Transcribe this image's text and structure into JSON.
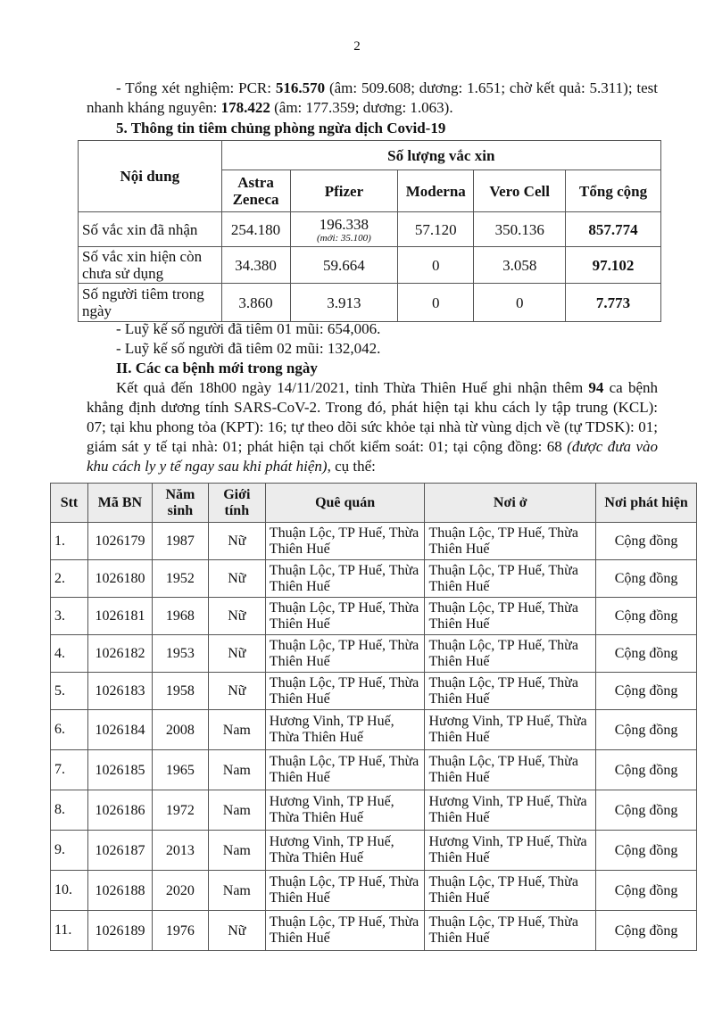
{
  "page_number": "2",
  "testing": {
    "prefix": "- Tổng xét nghiệm: PCR: ",
    "pcr_total": "516.570",
    "pcr_detail": " (âm: 509.608; dương: 1.651; chờ kết quả: 5.311); test nhanh kháng nguyên: ",
    "rapid_total": "178.422",
    "rapid_detail": " (âm: 177.359; dương: 1.063)."
  },
  "vaccine_section_title": "5. Thông tin tiêm chủng phòng ngừa dịch Covid-19",
  "vaccine_table": {
    "content_header": "Nội dung",
    "group_header": "Số lượng vắc xin",
    "columns": [
      "Astra Zeneca",
      "Pfizer",
      "Moderna",
      "Vero Cell",
      "Tổng cộng"
    ],
    "rows": [
      {
        "label": "Số vắc xin đã nhận",
        "values": [
          "254.180",
          "196.338",
          "57.120",
          "350.136",
          "857.774"
        ],
        "note": "(mới: 35.100)"
      },
      {
        "label": "Số vắc xin hiện còn chưa sử dụng",
        "values": [
          "34.380",
          "59.664",
          "0",
          "3.058",
          "97.102"
        ]
      },
      {
        "label": "Số người tiêm trong ngày",
        "values": [
          "3.860",
          "3.913",
          "0",
          "0",
          "7.773"
        ]
      }
    ]
  },
  "cumulative": [
    "- Luỹ kế số người đã tiêm 01 mũi: 654,006.",
    "- Luỹ kế số người đã tiêm 02 mũi: 132,042."
  ],
  "section2_title": "II. Các ca bệnh mới trong ngày",
  "summary": {
    "a": "Kết quả đến 18h00 ngày 14/11/2021, tỉnh Thừa Thiên Huế ghi nhận thêm ",
    "count": "94",
    "b": " ca bệnh khẳng định dương tính SARS-CoV-2. Trong đó, phát hiện tại khu cách ly tập trung (KCL): 07; tại khu phong tỏa (KPT): 16; tự theo dõi sức khỏe tại nhà từ vùng dịch về (tự TDSK): 01; giám sát y tế tại nhà: 01; phát hiện tại chốt kiểm soát: 01; tại cộng đồng: 68 ",
    "italic": "(được đưa vào khu cách ly y tế ngay sau khi phát hiện)",
    "c": ", cụ thể:"
  },
  "case_table": {
    "headers": [
      "Stt",
      "Mã BN",
      "Năm sinh",
      "Giới tính",
      "Quê quán",
      "Nơi ở",
      "Nơi phát hiện"
    ],
    "rows": [
      [
        "1.",
        "1026179",
        "1987",
        "Nữ",
        "Thuận Lộc, TP Huế, Thừa Thiên Huế",
        "Thuận Lộc, TP Huế, Thừa Thiên Huế",
        "Cộng đồng"
      ],
      [
        "2.",
        "1026180",
        "1952",
        "Nữ",
        "Thuận Lộc, TP Huế, Thừa Thiên Huế",
        "Thuận Lộc, TP Huế, Thừa Thiên Huế",
        "Cộng đồng"
      ],
      [
        "3.",
        "1026181",
        "1968",
        "Nữ",
        "Thuận Lộc, TP Huế, Thừa Thiên Huế",
        "Thuận Lộc, TP Huế, Thừa Thiên Huế",
        "Cộng đồng"
      ],
      [
        "4.",
        "1026182",
        "1953",
        "Nữ",
        "Thuận Lộc, TP Huế, Thừa Thiên Huế",
        "Thuận Lộc, TP Huế, Thừa Thiên Huế",
        "Cộng đồng"
      ],
      [
        "5.",
        "1026183",
        "1958",
        "Nữ",
        "Thuận Lộc, TP Huế, Thừa Thiên Huế",
        "Thuận Lộc, TP Huế, Thừa Thiên Huế",
        "Cộng đồng"
      ],
      [
        "6.",
        "1026184",
        "2008",
        "Nam",
        "Hương Vinh, TP Huế, Thừa Thiên Huế",
        "Hương Vinh, TP Huế, Thừa Thiên Huế",
        "Cộng đồng"
      ],
      [
        "7.",
        "1026185",
        "1965",
        "Nam",
        "Thuận Lộc, TP Huế, Thừa Thiên Huế",
        "Thuận Lộc, TP Huế, Thừa Thiên Huế",
        "Cộng đồng"
      ],
      [
        "8.",
        "1026186",
        "1972",
        "Nam",
        "Hương Vinh, TP Huế, Thừa Thiên Huế",
        "Hương Vinh, TP Huế, Thừa Thiên Huế",
        "Cộng đồng"
      ],
      [
        "9.",
        "1026187",
        "2013",
        "Nam",
        "Hương Vinh, TP Huế, Thừa Thiên Huế",
        "Hương Vinh, TP Huế, Thừa Thiên Huế",
        "Cộng đồng"
      ],
      [
        "10.",
        "1026188",
        "2020",
        "Nam",
        "Thuận Lộc, TP Huế, Thừa Thiên Huế",
        "Thuận Lộc, TP Huế, Thừa Thiên Huế",
        "Cộng đồng"
      ],
      [
        "11.",
        "1026189",
        "1976",
        "Nữ",
        "Thuận Lộc, TP Huế, Thừa Thiên Huế",
        "Thuận Lộc, TP Huế, Thừa Thiên Huế",
        "Cộng đồng"
      ]
    ]
  }
}
